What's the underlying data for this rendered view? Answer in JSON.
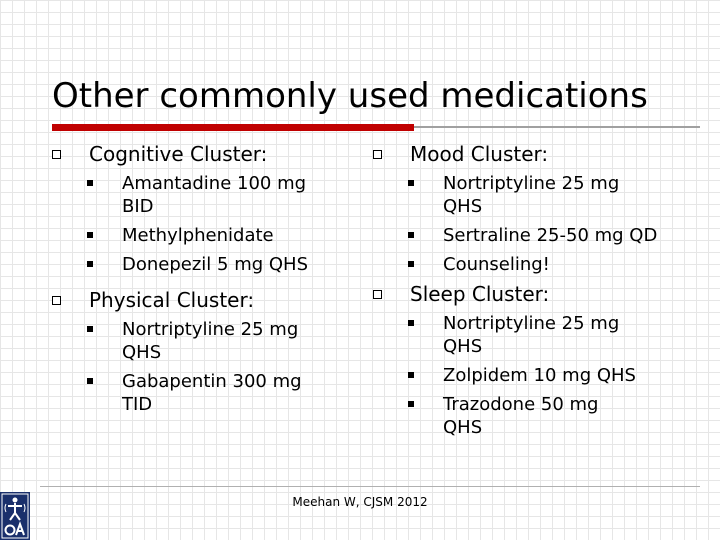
{
  "slide": {
    "title": "Other commonly used medications",
    "footer": "Meehan W, CJSM 2012",
    "accent_color": "#c00000",
    "logo_icon": "oa-logo-icon"
  },
  "left_column": {
    "groups": [
      {
        "heading": "Cognitive Cluster:",
        "items": [
          "Amantadine 100 mg BID",
          "Methylphenidate",
          "Donepezil 5 mg QHS"
        ]
      },
      {
        "heading": "Physical Cluster:",
        "items": [
          "Nortriptyline 25 mg QHS",
          "Gabapentin 300 mg TID"
        ]
      }
    ]
  },
  "right_column": {
    "groups": [
      {
        "heading": "Mood Cluster:",
        "items": [
          "Nortriptyline 25 mg QHS",
          "Sertraline 25-50 mg QD",
          "Counseling!"
        ]
      },
      {
        "heading": "Sleep Cluster:",
        "items": [
          "Nortriptyline 25 mg QHS",
          "Zolpidem 10 mg QHS",
          "Trazodone 50 mg QHS"
        ]
      }
    ]
  }
}
